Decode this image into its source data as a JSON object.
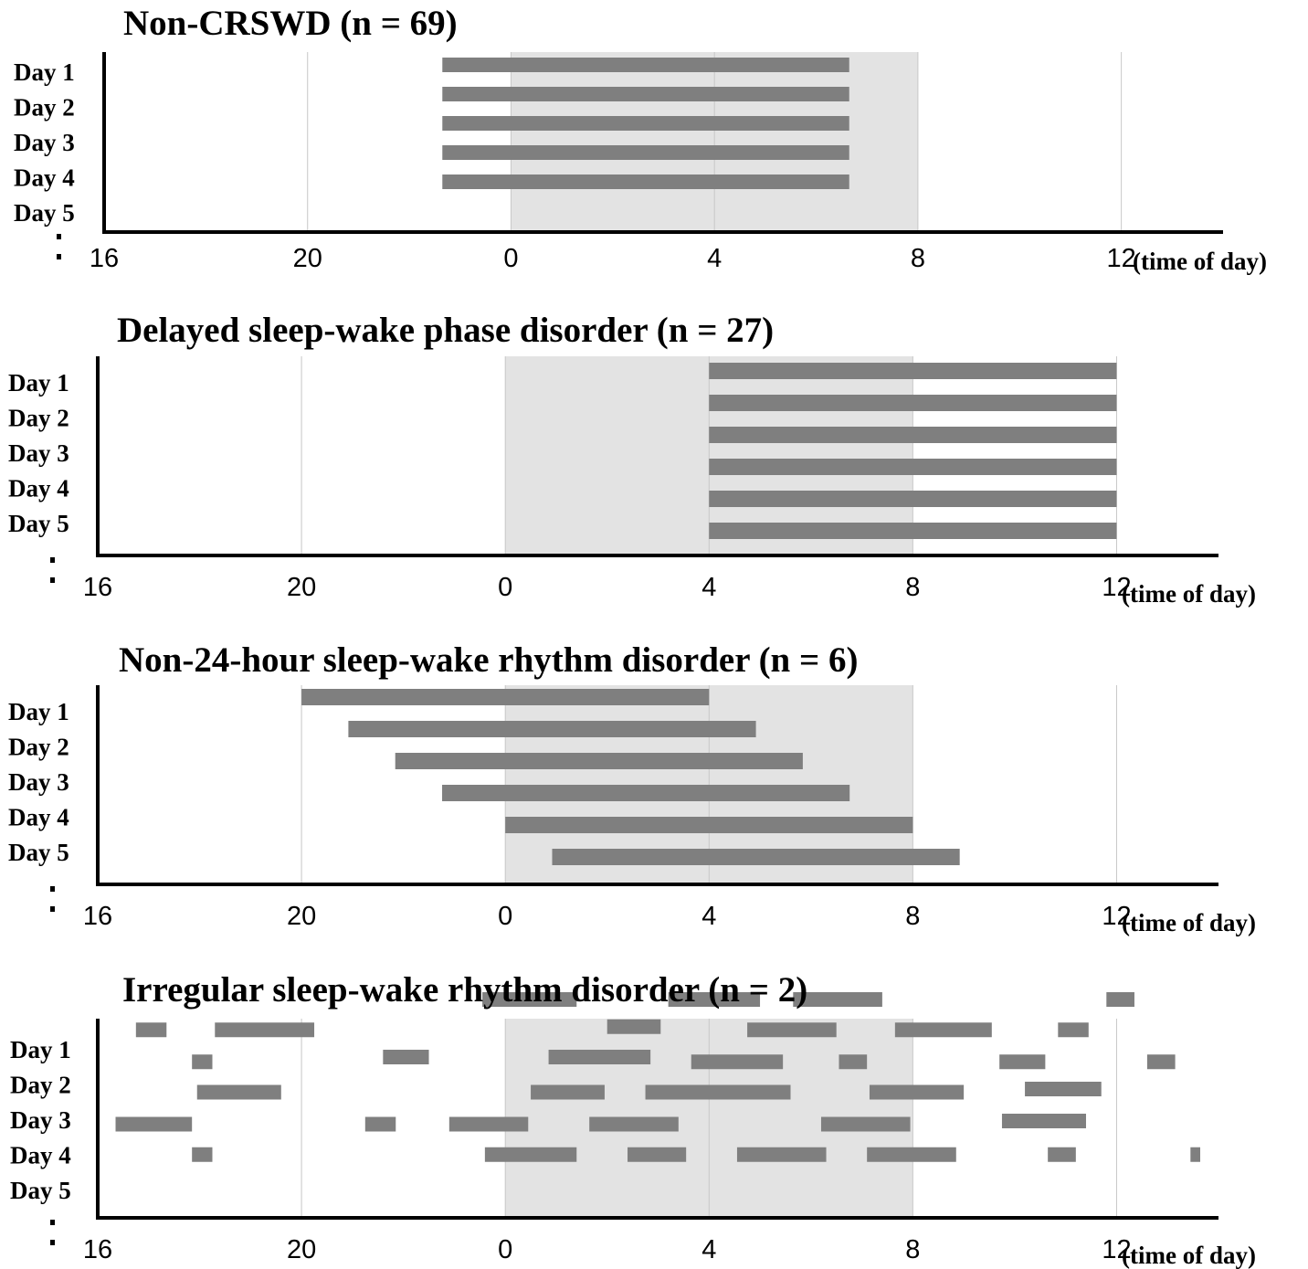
{
  "chart_data": [
    {
      "type": "gantt",
      "title": "Non-CRSWD (n = 69)",
      "xlabel": "(time of day)",
      "xticks": [
        "16",
        "20",
        "0",
        "4",
        "8",
        "12"
      ],
      "xlim": [
        16,
        38
      ],
      "night_shade": [
        24,
        32
      ],
      "rows": [
        "Day 1",
        "Day 2",
        "Day 3",
        "Day 4",
        "Day 5"
      ],
      "continuation": ":",
      "bars": [
        {
          "day": 1,
          "start": 22.65,
          "end": 30.65
        },
        {
          "day": 2,
          "start": 22.65,
          "end": 30.65
        },
        {
          "day": 3,
          "start": 22.65,
          "end": 30.65
        },
        {
          "day": 4,
          "start": 22.65,
          "end": 30.65
        },
        {
          "day": 5,
          "start": 22.65,
          "end": 30.65
        }
      ]
    },
    {
      "type": "gantt",
      "title": "Delayed sleep-wake phase disorder (n = 27)",
      "xlabel": "(time of day)",
      "xticks": [
        "16",
        "20",
        "0",
        "4",
        "8",
        "12"
      ],
      "xlim": [
        16,
        38
      ],
      "night_shade": [
        24,
        32
      ],
      "rows": [
        "Day 1",
        "Day 2",
        "Day 3",
        "Day 4",
        "Day 5"
      ],
      "continuation": ":",
      "bars": [
        {
          "day": 1,
          "start": 28,
          "end": 36
        },
        {
          "day": 2,
          "start": 28,
          "end": 36
        },
        {
          "day": 3,
          "start": 28,
          "end": 36
        },
        {
          "day": 4,
          "start": 28,
          "end": 36
        },
        {
          "day": 5,
          "start": 28,
          "end": 36
        },
        {
          "day": 6,
          "start": 28,
          "end": 36
        }
      ]
    },
    {
      "type": "gantt",
      "title": "Non-24-hour sleep-wake rhythm disorder (n = 6)",
      "xlabel": "(time of day)",
      "xticks": [
        "16",
        "20",
        "0",
        "4",
        "8",
        "12"
      ],
      "xlim": [
        16,
        38
      ],
      "night_shade": [
        24,
        32
      ],
      "rows": [
        "Day 1",
        "Day 2",
        "Day 3",
        "Day 4",
        "Day 5"
      ],
      "continuation": ":",
      "bars": [
        {
          "day": 1,
          "start": 20,
          "end": 28
        },
        {
          "day": 2,
          "start": 20.92,
          "end": 28.92
        },
        {
          "day": 3,
          "start": 21.84,
          "end": 29.84
        },
        {
          "day": 4,
          "start": 22.76,
          "end": 30.76
        },
        {
          "day": 5,
          "start": 24,
          "end": 32
        },
        {
          "day": 6,
          "start": 24.92,
          "end": 32.92
        }
      ]
    },
    {
      "type": "gantt",
      "title": "Irregular sleep-wake rhythm disorder (n = 2)",
      "xlabel": "(time of day)",
      "xticks": [
        "16",
        "20",
        "0",
        "4",
        "8",
        "12"
      ],
      "xlim": [
        16,
        38
      ],
      "night_shade": [
        24,
        32
      ],
      "rows": [
        "Day 1",
        "Day 2",
        "Day 3",
        "Day 4",
        "Day 5"
      ],
      "continuation": ":",
      "bars": [
        {
          "day": 0.2,
          "start": 23.55,
          "end": 25.4
        },
        {
          "day": 0.2,
          "start": 27.2,
          "end": 29
        },
        {
          "day": 0.2,
          "start": 29.65,
          "end": 31.4
        },
        {
          "day": 0.2,
          "start": 35.8,
          "end": 36.35
        },
        {
          "day": 1.05,
          "start": 26.0,
          "end": 27.05
        },
        {
          "day": 1.15,
          "start": 16.75,
          "end": 17.35
        },
        {
          "day": 1.15,
          "start": 18.3,
          "end": 20.25
        },
        {
          "day": 1.15,
          "start": 28.75,
          "end": 30.5
        },
        {
          "day": 1.15,
          "start": 31.65,
          "end": 33.55
        },
        {
          "day": 1.15,
          "start": 34.85,
          "end": 35.45
        },
        {
          "day": 1.15,
          "start": 38.1,
          "end": 39.15
        },
        {
          "day": 2.0,
          "start": 24.85,
          "end": 26.85
        },
        {
          "day": 2.0,
          "start": 21.6,
          "end": 22.5
        },
        {
          "day": 2.15,
          "start": 17.85,
          "end": 18.25
        },
        {
          "day": 2.15,
          "start": 27.65,
          "end": 29.45
        },
        {
          "day": 2.15,
          "start": 30.55,
          "end": 31.1
        },
        {
          "day": 2.15,
          "start": 33.7,
          "end": 34.6
        },
        {
          "day": 2.15,
          "start": 36.6,
          "end": 37.15
        },
        {
          "day": 3.0,
          "start": 34.2,
          "end": 35.7
        },
        {
          "day": 3.1,
          "start": 17.95,
          "end": 19.6
        },
        {
          "day": 3.1,
          "start": 24.5,
          "end": 25.95
        },
        {
          "day": 3.1,
          "start": 26.75,
          "end": 29.6
        },
        {
          "day": 3.1,
          "start": 31.15,
          "end": 33.0
        },
        {
          "day": 3.1,
          "start": 37.85,
          "end": 38.2
        },
        {
          "day": 4.0,
          "start": 33.75,
          "end": 35.4
        },
        {
          "day": 4.1,
          "start": 16.35,
          "end": 17.85
        },
        {
          "day": 4.1,
          "start": 21.25,
          "end": 21.85
        },
        {
          "day": 4.1,
          "start": 22.9,
          "end": 24.45
        },
        {
          "day": 4.1,
          "start": 25.65,
          "end": 27.4
        },
        {
          "day": 4.1,
          "start": 30.2,
          "end": 31.95
        },
        {
          "day": 5.05,
          "start": 17.85,
          "end": 18.25
        },
        {
          "day": 5.05,
          "start": 23.6,
          "end": 25.4
        },
        {
          "day": 5.05,
          "start": 26.4,
          "end": 27.55
        },
        {
          "day": 5.05,
          "start": 28.55,
          "end": 30.3
        },
        {
          "day": 5.05,
          "start": 31.1,
          "end": 32.85
        },
        {
          "day": 5.05,
          "start": 34.65,
          "end": 35.2
        },
        {
          "day": 5.05,
          "start": 37.45,
          "end": 38.55
        }
      ]
    }
  ]
}
